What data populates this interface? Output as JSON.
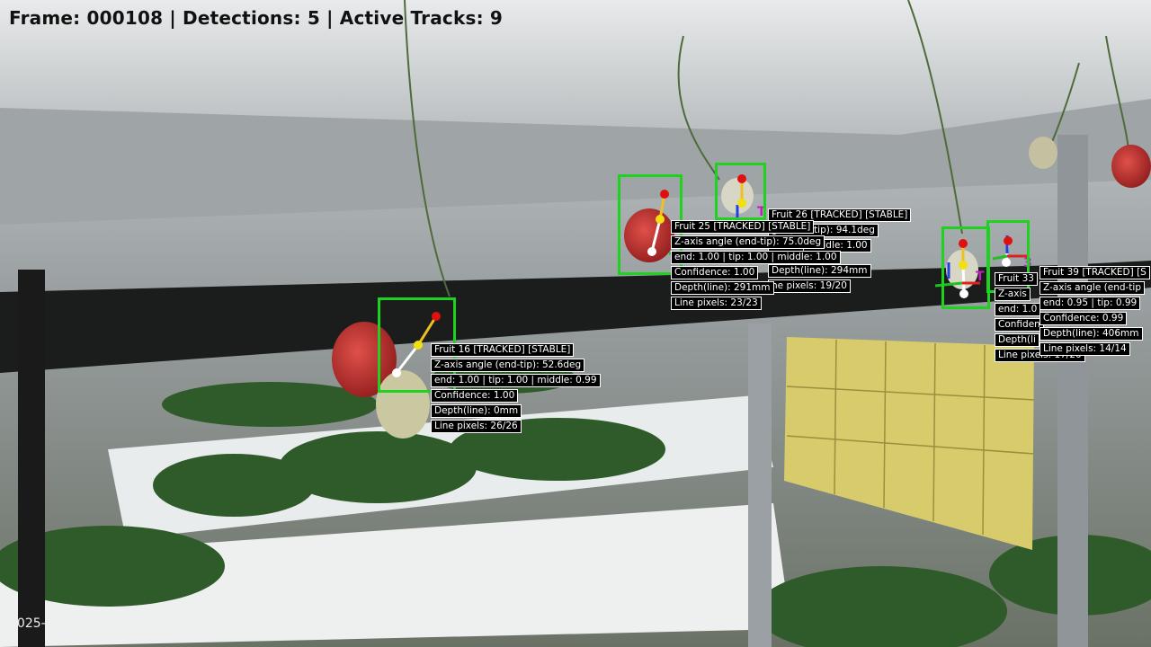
{
  "hud": {
    "frame_label": "Frame: 000108 | Detections: 5 | Active Tracks: 9",
    "timestamp": "2025-08-28 01:59:04"
  },
  "colors": {
    "bbox": "#1fd21f",
    "end_point": "#e01010",
    "middle_point": "#f0e010",
    "tip_point": "#ffffff",
    "axis_x": "#e02020",
    "axis_y": "#20c020",
    "axis_z": "#2040e0",
    "track_id": "#c020c0"
  },
  "fruits": [
    {
      "id": "16",
      "lines": [
        "Fruit 16 [TRACKED] [STABLE]",
        "Z-axis angle (end-tip): 52.6deg",
        "end: 1.00 | tip: 1.00 | middle: 0.99",
        "Confidence: 1.00",
        "Depth(line): 0mm",
        "Line pixels: 26/26"
      ]
    },
    {
      "id": "25",
      "lines": [
        "Fruit 25 [TRACKED] [STABLE]",
        "Z-axis angle (end-tip): 75.0deg",
        "end: 1.00 | tip: 1.00 | middle: 1.00",
        "Confidence: 1.00",
        "Depth(line): 291mm",
        "Line pixels: 23/23"
      ]
    },
    {
      "id": "26",
      "lines": [
        "Fruit 26 [TRACKED] [STABLE]",
        "gle (end-tip): 94.1deg",
        ": 1.00 | middle: 1.00",
        "Depth(line): 294mm",
        "ne pixels: 19/20"
      ]
    },
    {
      "id": "33",
      "lines": [
        "Fruit 33",
        "Z-axis",
        "end: 1.0",
        "Confiden",
        "Depth(li",
        "Line pixels: 17/20"
      ]
    },
    {
      "id": "39",
      "lines": [
        "Fruit 39 [TRACKED] [S",
        "Z-axis angle (end-tip",
        "end: 0.95 | tip: 0.99",
        "Confidence: 0.99",
        "Depth(line): 406mm",
        "Line pixels: 14/14"
      ]
    }
  ]
}
